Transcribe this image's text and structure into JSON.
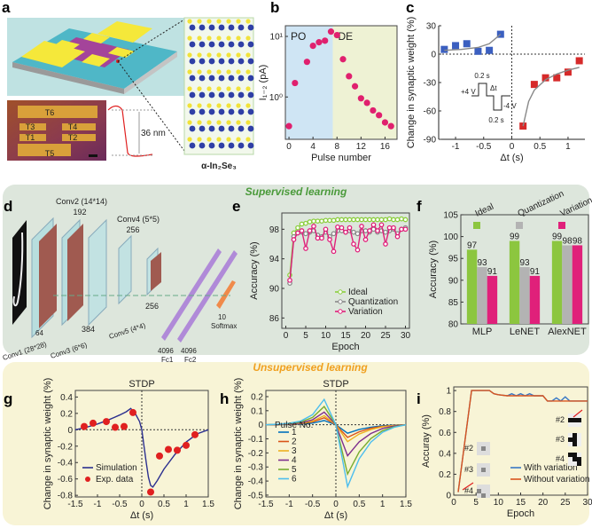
{
  "panel_labels": [
    "a",
    "b",
    "c",
    "d",
    "e",
    "f",
    "g",
    "h",
    "i"
  ],
  "sections": {
    "supervised": {
      "label": "Supervised learning",
      "color": "#4a9a3a",
      "band_color": "#dde6dc"
    },
    "unsupervised": {
      "label": "Unsupervised learning",
      "color": "#f0a020",
      "band_color": "#f8f4d6"
    }
  },
  "panel_a": {
    "terminals": [
      "T1",
      "T2",
      "T3",
      "T4",
      "T5",
      "T6"
    ],
    "thickness": "36 nm",
    "material": "α-In₂Se₃",
    "colors": {
      "substrate": "#4fb7c7",
      "electrode": "#f5e83a",
      "flake": "#a4449a",
      "se_atom": "#f1e23a",
      "in_atom": "#2f3fa6"
    }
  },
  "panel_d": {
    "layers": [
      {
        "name": "Conv1 (28*28)",
        "channels": "64"
      },
      {
        "name": "Conv2 (14*14)",
        "channels": "192"
      },
      {
        "name": "Conv3 (6*6)",
        "channels": "384"
      },
      {
        "name": "Conv4 (5*5)",
        "channels": "256"
      },
      {
        "name": "Conv5 (4*4)",
        "channels": "256"
      }
    ],
    "fc": [
      {
        "name": "Fc1",
        "channels": "4096"
      },
      {
        "name": "Fc2",
        "channels": "4096"
      }
    ],
    "softmax": {
      "name": "Softmax",
      "channels": "10"
    }
  },
  "chart_data": [
    {
      "panel": "b",
      "type": "scatter",
      "xlabel": "Pulse number",
      "ylabel": "I₁₋₂ (pA)",
      "yscale": "log",
      "xlim": [
        -0.6,
        18
      ],
      "ylim": [
        0.2,
        15
      ],
      "xticks": [
        0,
        4,
        8,
        12,
        16
      ],
      "yticks": [
        1,
        10
      ],
      "ytick_labels": [
        "10⁰",
        "10¹"
      ],
      "regions": [
        {
          "label": "PO",
          "from": -0.6,
          "to": 7.3,
          "color": "#cfe5f4"
        },
        {
          "label": "DE",
          "from": 7.3,
          "to": 18,
          "color": "#eef2d4"
        }
      ],
      "series": [
        {
          "color": "#e0206e",
          "marker": "circle",
          "x": [
            0,
            1,
            3,
            4,
            5,
            6,
            7,
            8,
            9,
            10,
            11,
            12,
            13,
            14,
            15,
            16,
            17
          ],
          "y": [
            0.33,
            1.7,
            3.8,
            7,
            8,
            8.5,
            12,
            10.5,
            4.2,
            2.2,
            1.5,
            0.95,
            0.8,
            0.6,
            0.5,
            0.38,
            0.33
          ]
        }
      ]
    },
    {
      "panel": "c",
      "type": "scatter",
      "xlabel": "Δt (s)",
      "ylabel": "Change in synaptic weight (%)",
      "xlim": [
        -1.3,
        1.3
      ],
      "ylim": [
        -90,
        30
      ],
      "xticks": [
        -1,
        -0.5,
        0,
        0.5,
        1
      ],
      "yticks": [
        30,
        0,
        -30,
        -60,
        -90
      ],
      "zero_lines": true,
      "annotations": {
        "width_top": "0.2 s",
        "delta": "Δt",
        "v_pos": "+4 V",
        "v_neg": "-4 V",
        "width_bottom": "0.2 s"
      },
      "series": [
        {
          "color": "#3b5fc0",
          "marker": "square",
          "x": [
            -1.2,
            -1,
            -0.8,
            -0.6,
            -0.4,
            -0.2
          ],
          "y": [
            5,
            9,
            11,
            3,
            4,
            21
          ]
        },
        {
          "color": "#d62a2a",
          "marker": "square",
          "x": [
            0.2,
            0.4,
            0.6,
            0.8,
            1,
            1.2
          ],
          "y": [
            -76,
            -32,
            -25,
            -25,
            -19,
            -7
          ]
        },
        {
          "color": "#888888",
          "marker": "line",
          "x": [
            -1.2,
            -0.9,
            -0.6,
            -0.4,
            -0.2
          ],
          "y": [
            4,
            5,
            7,
            11,
            21
          ]
        },
        {
          "color": "#888888",
          "marker": "line",
          "x": [
            0.2,
            0.3,
            0.4,
            0.6,
            0.8,
            1,
            1.2
          ],
          "y": [
            -76,
            -50,
            -38,
            -27,
            -21,
            -17,
            -14
          ]
        }
      ]
    },
    {
      "panel": "e",
      "type": "line",
      "xlabel": "Epoch",
      "ylabel": "Accuracy (%)",
      "xlim": [
        -1,
        31
      ],
      "ylim": [
        84.6,
        100.2
      ],
      "xticks": [
        0,
        5,
        10,
        15,
        20,
        25,
        30
      ],
      "yticks": [
        86,
        90,
        94,
        98
      ],
      "legend": "bottom-right",
      "x": [
        1,
        2,
        3,
        4,
        5,
        6,
        7,
        8,
        9,
        10,
        11,
        12,
        13,
        14,
        15,
        16,
        17,
        18,
        19,
        20,
        21,
        22,
        23,
        24,
        25,
        26,
        27,
        28,
        29,
        30
      ],
      "series": [
        {
          "name": "Ideal",
          "color": "#8ccf3f",
          "values": [
            91.8,
            97.5,
            98.2,
            98.7,
            98.8,
            99.0,
            99.1,
            99.1,
            99.1,
            99.2,
            99.2,
            99.2,
            99.3,
            99.3,
            99.3,
            99.3,
            99.3,
            99.3,
            99.3,
            99.3,
            99.3,
            99.3,
            99.3,
            99.3,
            99.3,
            99.4,
            99.3,
            99.3,
            99.4,
            99.3
          ]
        },
        {
          "name": "Quantization",
          "color": "#8a8a8a",
          "values": [
            90.7,
            97.0,
            97.5,
            97.6,
            97.4,
            97.6,
            97.8,
            97.2,
            97.0,
            97.6,
            97.0,
            97.4,
            97.8,
            97.8,
            97.6,
            97.8,
            97.6,
            97.4,
            97.8,
            97.8,
            97.6,
            98.0,
            97.6,
            97.8,
            97.6,
            97.8,
            98.0,
            97.4,
            98.0,
            98.2
          ]
        },
        {
          "name": "Variation",
          "color": "#e0207a",
          "values": [
            91.1,
            96.6,
            97.5,
            97.8,
            95.4,
            97.8,
            98.4,
            96.8,
            96.8,
            98.0,
            96.6,
            95.0,
            98.3,
            98.2,
            97.6,
            98.2,
            96.0,
            95.2,
            98.4,
            96.6,
            97.8,
            98.6,
            97.8,
            98.6,
            96.0,
            98.2,
            98.2,
            97.0,
            98.0,
            98.0
          ]
        }
      ]
    },
    {
      "panel": "f",
      "type": "bar",
      "xlabel": "",
      "ylabel": "Accuracy (%)",
      "ylim": [
        80,
        105
      ],
      "yticks": [
        80,
        85,
        90,
        95,
        100,
        105
      ],
      "categories": [
        "MLP",
        "LeNET",
        "AlexNET"
      ],
      "legend": "top",
      "series": [
        {
          "name": "Ideal",
          "color": "#8cc63f",
          "values": [
            97,
            99,
            99
          ]
        },
        {
          "name": "Quantization",
          "color": "#b3b3b3",
          "values": [
            93,
            93,
            98
          ]
        },
        {
          "name": "Variation",
          "color": "#e0207a",
          "values": [
            91,
            91,
            98
          ]
        }
      ]
    },
    {
      "panel": "g",
      "type": "line",
      "title": "STDP",
      "xlabel": "Δt (s)",
      "ylabel": "Change in synaptic weight (%)",
      "xlim": [
        -1.5,
        1.5
      ],
      "ylim": [
        -0.82,
        0.48
      ],
      "xticks": [
        -1.5,
        -1,
        -0.5,
        0,
        0.5,
        1,
        1.5
      ],
      "yticks": [
        0.4,
        0.2,
        0,
        -0.2,
        -0.4,
        -0.6,
        -0.8
      ],
      "zero_lines": true,
      "legend": "bottom-left",
      "series": [
        {
          "name": "Simulation",
          "color": "#2b2f8f",
          "marker": "line",
          "x": [
            -1.5,
            -1.25,
            -1,
            -0.75,
            -0.5,
            -0.35,
            -0.25,
            -0.15,
            -0.05,
            0,
            0.05,
            0.1,
            0.15,
            0.2,
            0.25,
            0.35,
            0.5,
            0.75,
            1,
            1.25,
            1.5
          ],
          "y": [
            0,
            0.03,
            0.07,
            0.12,
            0.18,
            0.22,
            0.26,
            0.2,
            0.1,
            0,
            -0.2,
            -0.4,
            -0.58,
            -0.68,
            -0.7,
            -0.62,
            -0.48,
            -0.3,
            -0.15,
            -0.05,
            0
          ]
        },
        {
          "name": "Exp. data",
          "color": "#e02020",
          "marker": "circle",
          "x": [
            -1.3,
            -1.1,
            -0.8,
            -0.6,
            -0.4,
            -0.2,
            0.2,
            0.4,
            0.6,
            0.8,
            1,
            1.2
          ],
          "y": [
            0.04,
            0.08,
            0.1,
            0.03,
            0.04,
            0.21,
            -0.76,
            -0.32,
            -0.24,
            -0.25,
            -0.19,
            -0.06
          ]
        }
      ]
    },
    {
      "panel": "h",
      "type": "line",
      "title": "STDP",
      "xlabel": "Δt (s)",
      "ylabel": "Change in synaptic weight (%)",
      "xlim": [
        -1.5,
        1.5
      ],
      "ylim": [
        -0.513,
        0.244
      ],
      "xticks": [
        -1.5,
        -1,
        -0.5,
        0,
        0.5,
        1,
        1.5
      ],
      "yticks": [
        0.2,
        0.1,
        0,
        -0.1,
        -0.2,
        -0.3,
        -0.4,
        -0.5
      ],
      "zero_lines": true,
      "legend_title": "Pulse No.",
      "legend": "left",
      "x": [
        -1.5,
        -1.25,
        -1,
        -0.75,
        -0.5,
        -0.25,
        0,
        0.25,
        0.5,
        0.75,
        1,
        1.25,
        1.5
      ],
      "series": [
        {
          "name": "1",
          "color": "#0072bd",
          "y": [
            0,
            0.001,
            0.002,
            0.005,
            0.012,
            0.03,
            0,
            -0.06,
            -0.033,
            -0.017,
            -0.007,
            -0.002,
            0
          ]
        },
        {
          "name": "2",
          "color": "#d95319",
          "y": [
            0,
            0.001,
            0.003,
            0.008,
            0.02,
            0.05,
            0,
            -0.09,
            -0.05,
            -0.025,
            -0.011,
            -0.004,
            0
          ]
        },
        {
          "name": "3",
          "color": "#edb120",
          "y": [
            0,
            0.001,
            0.004,
            0.01,
            0.026,
            0.065,
            0,
            -0.12,
            -0.066,
            -0.034,
            -0.014,
            -0.005,
            0
          ]
        },
        {
          "name": "4",
          "color": "#7e2f8e",
          "y": [
            0,
            0.002,
            0.005,
            0.014,
            0.036,
            0.09,
            0,
            -0.22,
            -0.121,
            -0.062,
            -0.026,
            -0.009,
            0
          ]
        },
        {
          "name": "5",
          "color": "#77ac30",
          "y": [
            0,
            0.003,
            0.008,
            0.02,
            0.052,
            0.13,
            0,
            -0.35,
            -0.193,
            -0.098,
            -0.042,
            -0.014,
            0
          ]
        },
        {
          "name": "6",
          "color": "#4dbeee",
          "y": [
            0,
            0.004,
            0.011,
            0.027,
            0.072,
            0.18,
            0,
            -0.44,
            -0.242,
            -0.123,
            -0.053,
            -0.018,
            0
          ]
        }
      ]
    },
    {
      "panel": "i",
      "type": "line",
      "xlabel": "Epoch",
      "ylabel": "Accuray (%)",
      "xlim": [
        0,
        30
      ],
      "ylim": [
        0,
        1.035
      ],
      "xticks": [
        0,
        5,
        10,
        15,
        20,
        25,
        30
      ],
      "yticks": [
        0,
        0.2,
        0.4,
        0.6,
        0.8,
        1
      ],
      "legend": "bottom-right",
      "inset_labels": [
        "#2",
        "#3",
        "#4"
      ],
      "series": [
        {
          "name": "With variation",
          "color": "#3a78c4",
          "x": [
            1,
            4,
            5,
            8,
            9,
            10,
            12,
            13,
            14,
            15,
            16,
            17,
            18,
            20,
            21,
            22,
            23,
            24,
            25,
            26,
            30
          ],
          "y": [
            0.03,
            1,
            1,
            1,
            0.97,
            0.96,
            0.95,
            0.97,
            0.95,
            0.97,
            0.95,
            0.97,
            0.95,
            0.95,
            0.9,
            0.9,
            0.93,
            0.9,
            0.94,
            0.9,
            0.9
          ]
        },
        {
          "name": "Without variation",
          "color": "#d9541e",
          "x": [
            1,
            4,
            5,
            8,
            9,
            10,
            12,
            20,
            21,
            30
          ],
          "y": [
            0.03,
            1,
            1,
            1,
            0.97,
            0.96,
            0.95,
            0.95,
            0.9,
            0.9
          ]
        }
      ]
    }
  ]
}
